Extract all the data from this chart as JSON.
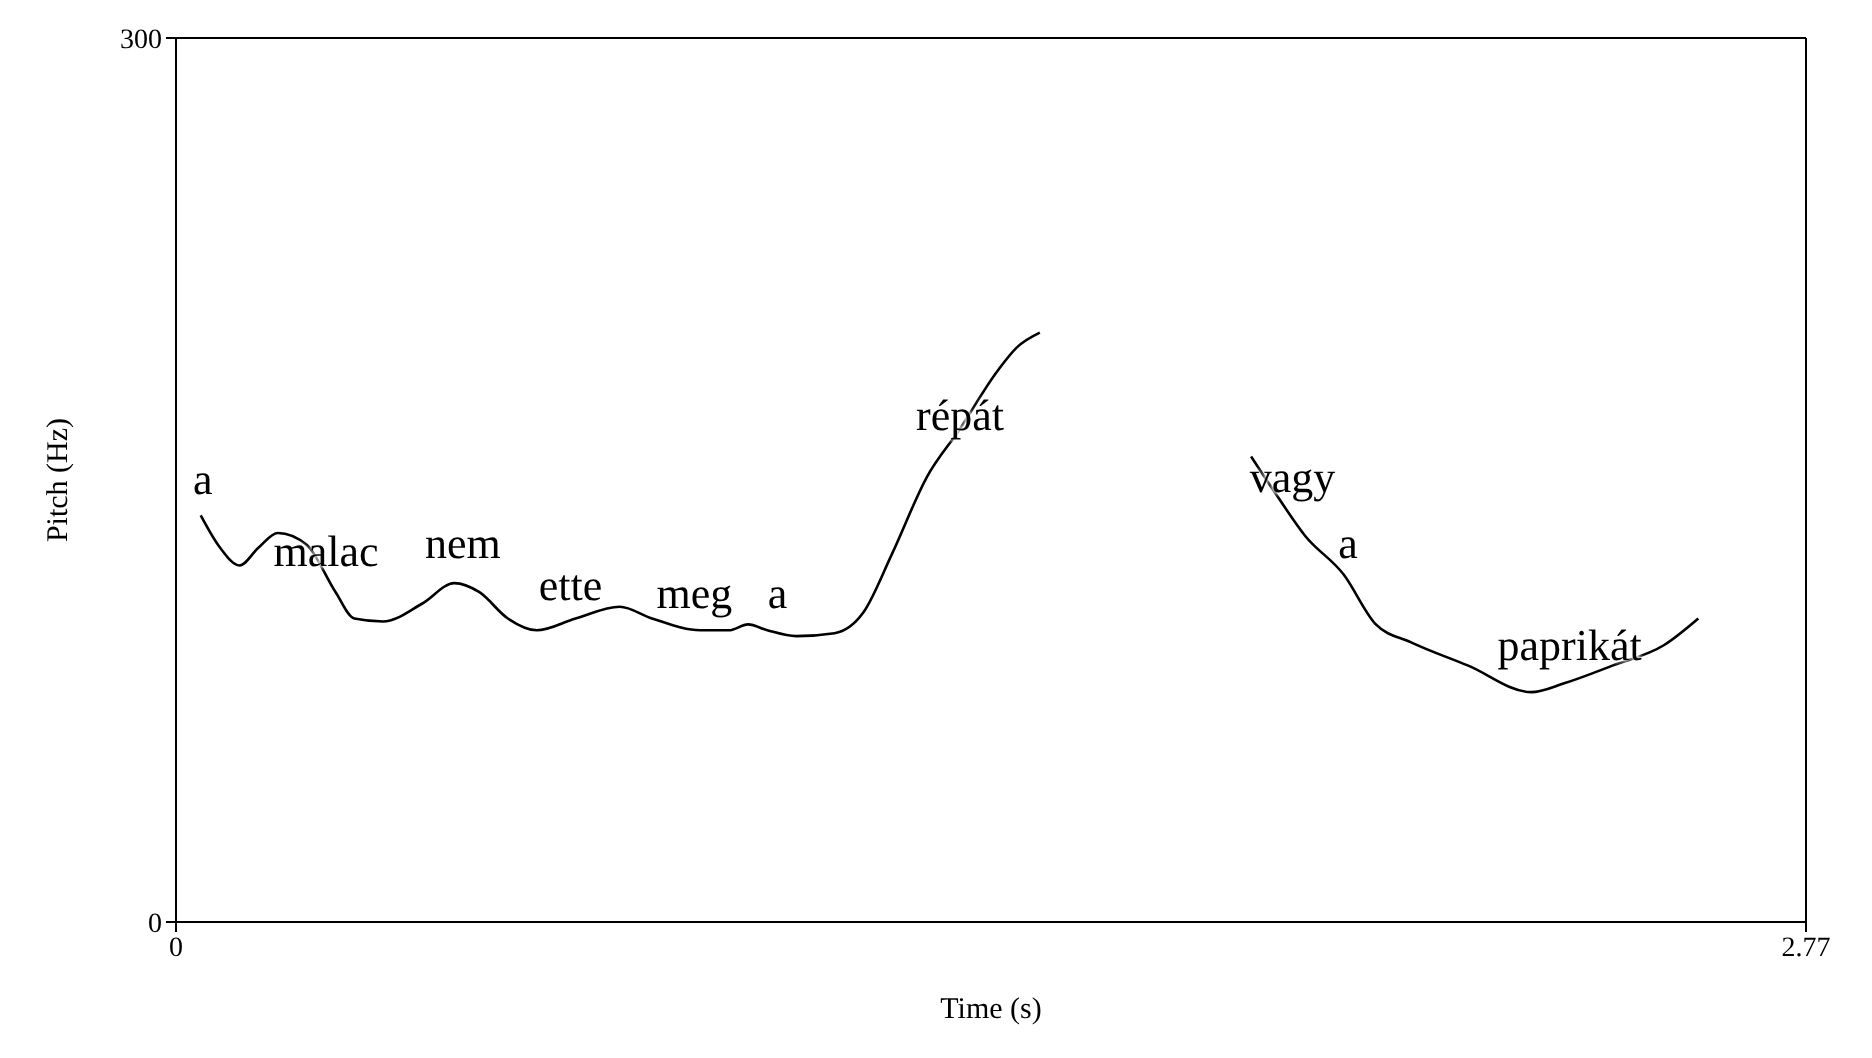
{
  "chart_data": {
    "type": "line",
    "xlabel": "Time (s)",
    "ylabel": "Pitch (Hz)",
    "xlim": [
      0,
      2.77
    ],
    "xticks": [
      0,
      2.77
    ],
    "ylim": [
      0,
      300
    ],
    "yticks": [
      0,
      300
    ],
    "marker": "none",
    "line_style": "solid",
    "series": [
      {
        "color": "#000000",
        "x": [
          0.042,
          0.075,
          0.108,
          0.14,
          0.173,
          0.222,
          0.271,
          0.303,
          0.352,
          0.418,
          0.473,
          0.515,
          0.564,
          0.613,
          0.679,
          0.754,
          0.809,
          0.891,
          0.94,
          0.972,
          1.005,
          1.054,
          1.119,
          1.168,
          1.217,
          1.276,
          1.331,
          1.396,
          1.429,
          1.468
        ],
        "values": [
          138,
          127,
          121,
          127,
          132,
          128,
          112,
          103,
          102,
          108,
          115,
          112,
          103,
          99,
          103,
          107,
          103,
          99,
          99,
          101,
          99,
          97,
          98,
          105,
          125,
          151,
          167,
          187,
          195,
          200
        ]
      },
      {
        "color": "#000000",
        "x": [
          1.827,
          1.87,
          1.919,
          1.984,
          2.039,
          2.098,
          2.196,
          2.303,
          2.359,
          2.441,
          2.529,
          2.587
        ],
        "values": [
          158,
          145,
          131,
          118,
          101,
          95,
          87,
          78,
          81,
          87,
          94,
          103
        ]
      }
    ],
    "annotations": [
      "a",
      "malac",
      "nem",
      "ette",
      "meg",
      "a",
      "répát",
      "vagy",
      "a",
      "paprikát"
    ]
  }
}
